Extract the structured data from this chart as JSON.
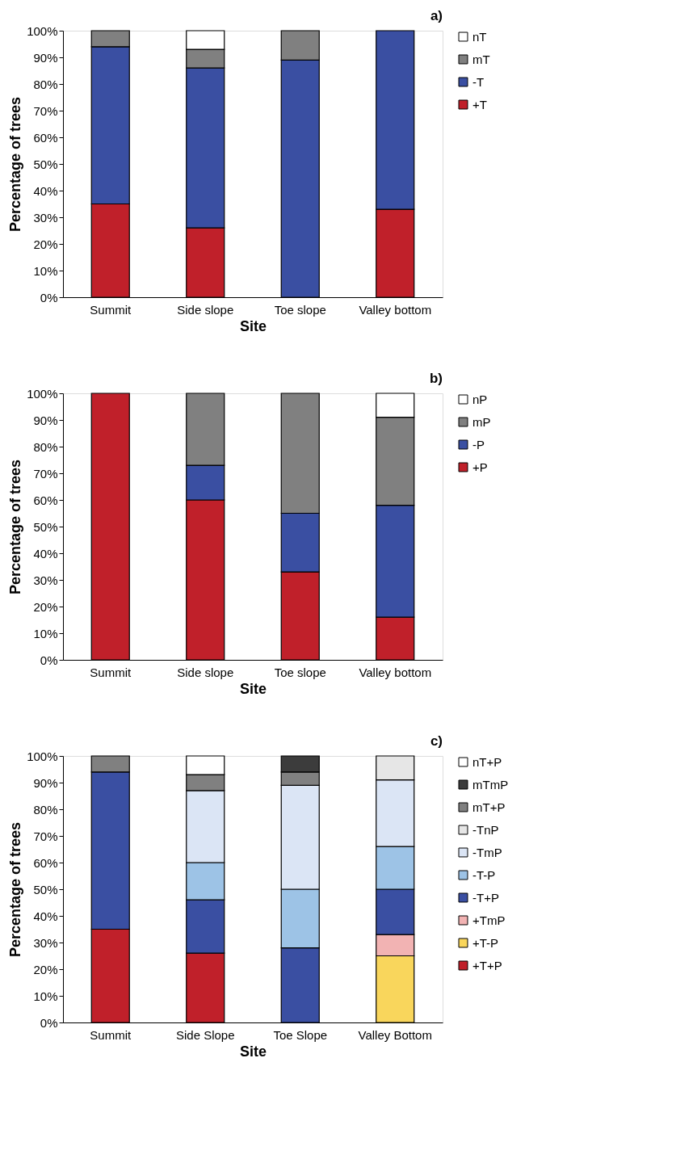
{
  "chart_data": [
    {
      "type": "bar",
      "stacked": true,
      "title": "a)",
      "xlabel": "Site",
      "ylabel": "Percentage of trees",
      "categories": [
        "Summit",
        "Side slope",
        "Toe slope",
        "Valley bottom"
      ],
      "ylim": [
        0,
        100
      ],
      "yticks": [
        {
          "value": 0,
          "label": "0%"
        },
        {
          "value": 10,
          "label": "10%"
        },
        {
          "value": 20,
          "label": "20%"
        },
        {
          "value": 30,
          "label": "30%"
        },
        {
          "value": 40,
          "label": "40%"
        },
        {
          "value": 50,
          "label": "50%"
        },
        {
          "value": 60,
          "label": "60%"
        },
        {
          "value": 70,
          "label": "70%"
        },
        {
          "value": 80,
          "label": "80%"
        },
        {
          "value": 90,
          "label": "90%"
        },
        {
          "value": 100,
          "label": "100%"
        }
      ],
      "legend": "right",
      "grid": false,
      "series": [
        {
          "name": "+T",
          "color": "#c0202a",
          "values": [
            35,
            26,
            null,
            33
          ]
        },
        {
          "name": "-T",
          "color": "#3a4fa2",
          "values": [
            59,
            60,
            89,
            67
          ]
        },
        {
          "name": "mT",
          "color": "#808080",
          "values": [
            6,
            7,
            11,
            null
          ]
        },
        {
          "name": "nT",
          "color": "#ffffff",
          "values": [
            null,
            7,
            null,
            null
          ]
        }
      ]
    },
    {
      "type": "bar",
      "stacked": true,
      "title": "b)",
      "xlabel": "Site",
      "ylabel": "Percentage of trees",
      "categories": [
        "Summit",
        "Side slope",
        "Toe slope",
        "Valley bottom"
      ],
      "ylim": [
        0,
        100
      ],
      "yticks": [
        {
          "value": 0,
          "label": "0%"
        },
        {
          "value": 10,
          "label": "10%"
        },
        {
          "value": 20,
          "label": "20%"
        },
        {
          "value": 30,
          "label": "30%"
        },
        {
          "value": 40,
          "label": "40%"
        },
        {
          "value": 50,
          "label": "50%"
        },
        {
          "value": 60,
          "label": "60%"
        },
        {
          "value": 70,
          "label": "70%"
        },
        {
          "value": 80,
          "label": "80%"
        },
        {
          "value": 90,
          "label": "90%"
        },
        {
          "value": 100,
          "label": "100%"
        }
      ],
      "legend": "right",
      "grid": false,
      "series": [
        {
          "name": "+P",
          "color": "#c0202a",
          "values": [
            100,
            60,
            33,
            16
          ]
        },
        {
          "name": "-P",
          "color": "#3a4fa2",
          "values": [
            null,
            13,
            22,
            42
          ]
        },
        {
          "name": "mP",
          "color": "#808080",
          "values": [
            null,
            27,
            45,
            33
          ]
        },
        {
          "name": "nP",
          "color": "#ffffff",
          "values": [
            null,
            null,
            null,
            9
          ]
        }
      ]
    },
    {
      "type": "bar",
      "stacked": true,
      "title": "c)",
      "xlabel": "Site",
      "ylabel": "Percentage of trees",
      "categories": [
        "Summit",
        "Side Slope",
        "Toe Slope",
        "Valley Bottom"
      ],
      "ylim": [
        0,
        100
      ],
      "yticks": [
        {
          "value": 0,
          "label": "0%"
        },
        {
          "value": 10,
          "label": "10%"
        },
        {
          "value": 20,
          "label": "20%"
        },
        {
          "value": 30,
          "label": "30%"
        },
        {
          "value": 40,
          "label": "40%"
        },
        {
          "value": 50,
          "label": "50%"
        },
        {
          "value": 60,
          "label": "60%"
        },
        {
          "value": 70,
          "label": "70%"
        },
        {
          "value": 80,
          "label": "80%"
        },
        {
          "value": 90,
          "label": "90%"
        },
        {
          "value": 100,
          "label": "100%"
        }
      ],
      "legend": "right",
      "grid": false,
      "series": [
        {
          "name": "+T+P",
          "color": "#c0202a",
          "values": [
            35,
            26,
            null,
            null
          ]
        },
        {
          "name": "+T-P",
          "color": "#f9d65c",
          "values": [
            null,
            null,
            null,
            25
          ]
        },
        {
          "name": "+TmP",
          "color": "#f2b3b3",
          "values": [
            null,
            null,
            null,
            8
          ]
        },
        {
          "name": "-T+P",
          "color": "#3a4fa2",
          "values": [
            59,
            20,
            28,
            17
          ]
        },
        {
          "name": "-T-P",
          "color": "#9dc3e6",
          "values": [
            null,
            14,
            22,
            16
          ]
        },
        {
          "name": "-TmP",
          "color": "#dbe5f5",
          "values": [
            null,
            27,
            39,
            25
          ]
        },
        {
          "name": "-TnP",
          "color": "#e6e6e6",
          "values": [
            null,
            null,
            null,
            9
          ]
        },
        {
          "name": "mT+P",
          "color": "#808080",
          "values": [
            6,
            6,
            5,
            null
          ]
        },
        {
          "name": "mTmP",
          "color": "#3c3c3c",
          "values": [
            null,
            null,
            6,
            null
          ]
        },
        {
          "name": "nT+P",
          "color": "#ffffff",
          "values": [
            null,
            7,
            null,
            null
          ]
        }
      ]
    }
  ]
}
